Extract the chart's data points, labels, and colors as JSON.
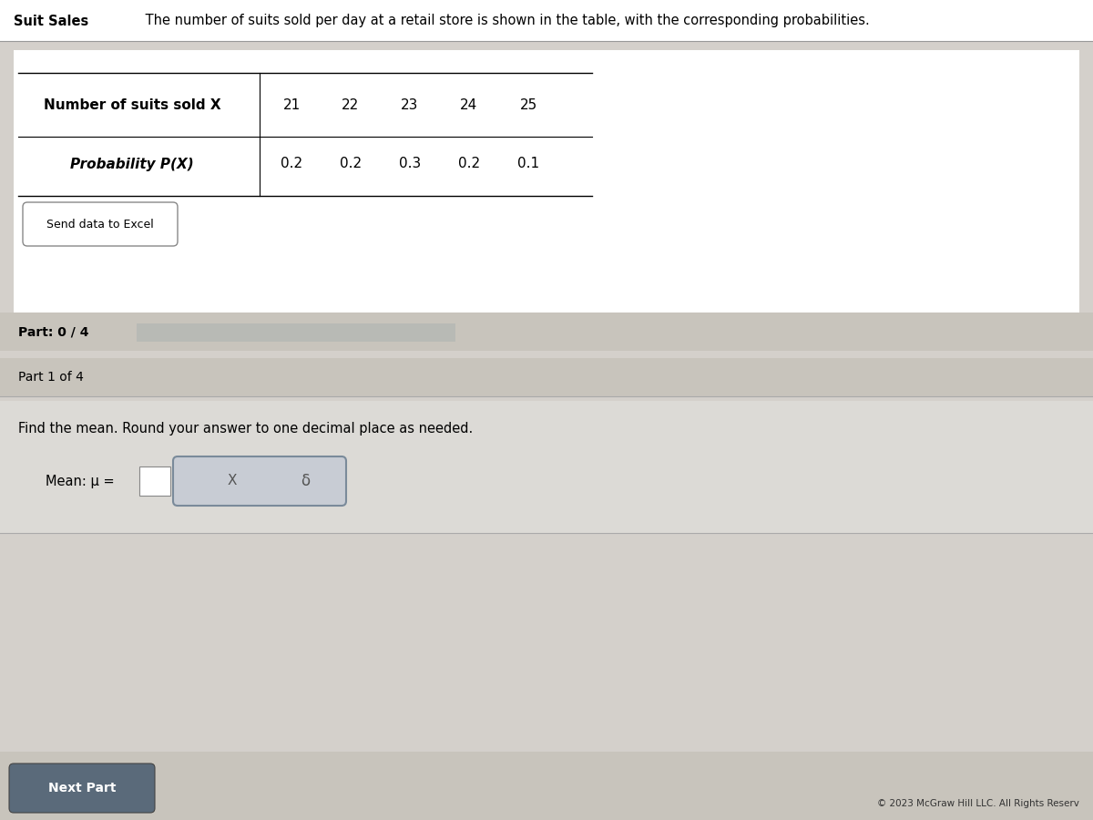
{
  "title_bold": "Suit Sales",
  "title_regular": " The number of suits sold per day at a retail store is shown in the table, with the corresponding probabilities.",
  "table_header_label": "Number of suits sold X",
  "table_prob_label": "Probability P(X)",
  "x_values": [
    21,
    22,
    23,
    24,
    25
  ],
  "probabilities": [
    0.2,
    0.2,
    0.3,
    0.2,
    0.1
  ],
  "send_to_excel_text": "Send data to Excel",
  "part_label": "Part: 0 / 4",
  "part1_label": "Part 1 of 4",
  "find_mean_text": "Find the mean. Round your answer to one decimal place as needed.",
  "mean_label": "Mean: μ =",
  "button_x_text": "X",
  "button_undo_text": "δ",
  "next_part_text": "Next Part",
  "copyright_text": "© 2023 McGraw Hill LLC. All Rights Reserv",
  "bg_color": "#d4d0cb",
  "white_bg": "#ffffff",
  "dark_section_bg": "#c8c4bc",
  "progress_bar_color": "#8b9bb4",
  "button_bg": "#b8bfc8",
  "border_color": "#999999",
  "part1_section_bg": "#dcdad6",
  "input_box_color": "#f0eeea",
  "answer_box_bg": "#c8ccd4"
}
